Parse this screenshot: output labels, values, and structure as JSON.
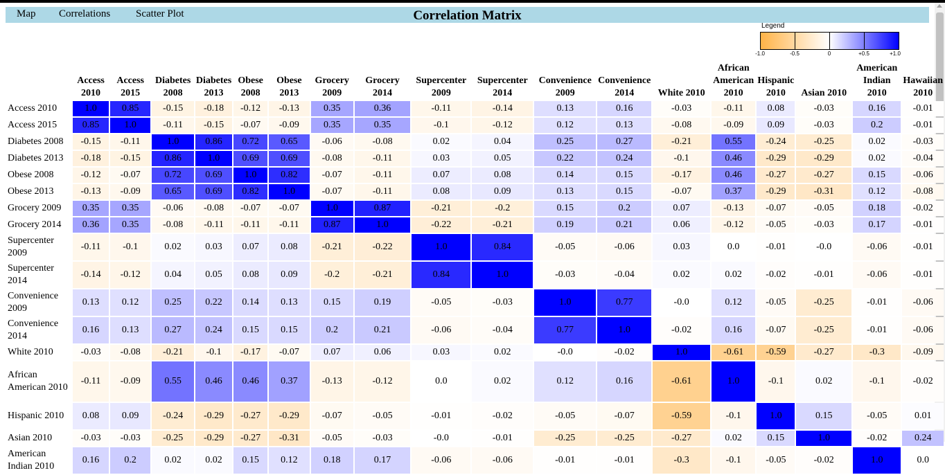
{
  "nav": {
    "items": [
      "Map",
      "Correlations",
      "Scatter Plot"
    ],
    "title": "Correlation Matrix"
  },
  "legend": {
    "title": "Legend",
    "labels": [
      "-1.0",
      "-0.5",
      "0",
      "+0.5",
      "+1.0"
    ],
    "colors": {
      "negative": "#ffb347",
      "zero": "#ffffff",
      "positive": "#0000ff"
    }
  },
  "chart_data": {
    "type": "heatmap",
    "title": "Correlation Matrix",
    "columns": [
      "Access 2010",
      "Access 2015",
      "Diabetes 2008",
      "Diabetes 2013",
      "Obese 2008",
      "Obese 2013",
      "Grocery 2009",
      "Grocery 2014",
      "Supercenter 2009",
      "Supercenter 2014",
      "Convenience 2009",
      "Convenience 2014",
      "White 2010",
      "African American 2010",
      "Hispanic 2010",
      "Asian 2010",
      "American Indian 2010",
      "Hawaiian 2010"
    ],
    "rows": [
      {
        "label": "Access 2010",
        "values": [
          "1.0",
          "0.85",
          "-0.15",
          "-0.18",
          "-0.12",
          "-0.13",
          "0.35",
          "0.36",
          "-0.11",
          "-0.14",
          "0.13",
          "0.16",
          "-0.03",
          "-0.11",
          "0.08",
          "-0.03",
          "0.16",
          "-0.01"
        ]
      },
      {
        "label": "Access 2015",
        "values": [
          "0.85",
          "1.0",
          "-0.11",
          "-0.15",
          "-0.07",
          "-0.09",
          "0.35",
          "0.35",
          "-0.1",
          "-0.12",
          "0.12",
          "0.13",
          "-0.08",
          "-0.09",
          "0.09",
          "-0.03",
          "0.2",
          "-0.01"
        ]
      },
      {
        "label": "Diabetes 2008",
        "values": [
          "-0.15",
          "-0.11",
          "1.0",
          "0.86",
          "0.72",
          "0.65",
          "-0.06",
          "-0.08",
          "0.02",
          "0.04",
          "0.25",
          "0.27",
          "-0.21",
          "0.55",
          "-0.24",
          "-0.25",
          "0.02",
          "-0.03"
        ]
      },
      {
        "label": "Diabetes 2013",
        "values": [
          "-0.18",
          "-0.15",
          "0.86",
          "1.0",
          "0.69",
          "0.69",
          "-0.08",
          "-0.11",
          "0.03",
          "0.05",
          "0.22",
          "0.24",
          "-0.1",
          "0.46",
          "-0.29",
          "-0.29",
          "0.02",
          "-0.04"
        ]
      },
      {
        "label": "Obese 2008",
        "values": [
          "-0.12",
          "-0.07",
          "0.72",
          "0.69",
          "1.0",
          "0.82",
          "-0.07",
          "-0.11",
          "0.07",
          "0.08",
          "0.14",
          "0.15",
          "-0.17",
          "0.46",
          "-0.27",
          "-0.27",
          "0.15",
          "-0.06"
        ]
      },
      {
        "label": "Obese 2013",
        "values": [
          "-0.13",
          "-0.09",
          "0.65",
          "0.69",
          "0.82",
          "1.0",
          "-0.07",
          "-0.11",
          "0.08",
          "0.09",
          "0.13",
          "0.15",
          "-0.07",
          "0.37",
          "-0.29",
          "-0.31",
          "0.12",
          "-0.08"
        ]
      },
      {
        "label": "Grocery 2009",
        "values": [
          "0.35",
          "0.35",
          "-0.06",
          "-0.08",
          "-0.07",
          "-0.07",
          "1.0",
          "0.87",
          "-0.21",
          "-0.2",
          "0.15",
          "0.2",
          "0.07",
          "-0.13",
          "-0.07",
          "-0.05",
          "0.18",
          "-0.02"
        ]
      },
      {
        "label": "Grocery 2014",
        "values": [
          "0.36",
          "0.35",
          "-0.08",
          "-0.11",
          "-0.11",
          "-0.11",
          "0.87",
          "1.0",
          "-0.22",
          "-0.21",
          "0.19",
          "0.21",
          "0.06",
          "-0.12",
          "-0.05",
          "-0.03",
          "0.17",
          "-0.01"
        ]
      },
      {
        "label": "Supercenter 2009",
        "values": [
          "-0.11",
          "-0.1",
          "0.02",
          "0.03",
          "0.07",
          "0.08",
          "-0.21",
          "-0.22",
          "1.0",
          "0.84",
          "-0.05",
          "-0.06",
          "0.03",
          "0.0",
          "-0.01",
          "-0.0",
          "-0.06",
          "-0.01"
        ]
      },
      {
        "label": "Supercenter 2014",
        "values": [
          "-0.14",
          "-0.12",
          "0.04",
          "0.05",
          "0.08",
          "0.09",
          "-0.2",
          "-0.21",
          "0.84",
          "1.0",
          "-0.03",
          "-0.04",
          "0.02",
          "0.02",
          "-0.02",
          "-0.01",
          "-0.06",
          "-0.01"
        ]
      },
      {
        "label": "Convenience 2009",
        "values": [
          "0.13",
          "0.12",
          "0.25",
          "0.22",
          "0.14",
          "0.13",
          "0.15",
          "0.19",
          "-0.05",
          "-0.03",
          "1.0",
          "0.77",
          "-0.0",
          "0.12",
          "-0.05",
          "-0.25",
          "-0.01",
          "-0.06"
        ]
      },
      {
        "label": "Convenience 2014",
        "values": [
          "0.16",
          "0.13",
          "0.27",
          "0.24",
          "0.15",
          "0.15",
          "0.2",
          "0.21",
          "-0.06",
          "-0.04",
          "0.77",
          "1.0",
          "-0.02",
          "0.16",
          "-0.07",
          "-0.25",
          "-0.01",
          "-0.06"
        ]
      },
      {
        "label": "White 2010",
        "values": [
          "-0.03",
          "-0.08",
          "-0.21",
          "-0.1",
          "-0.17",
          "-0.07",
          "0.07",
          "0.06",
          "0.03",
          "0.02",
          "-0.0",
          "-0.02",
          "1.0",
          "-0.61",
          "-0.59",
          "-0.27",
          "-0.3",
          "-0.09"
        ]
      },
      {
        "label": "African American 2010",
        "values": [
          "-0.11",
          "-0.09",
          "0.55",
          "0.46",
          "0.46",
          "0.37",
          "-0.13",
          "-0.12",
          "0.0",
          "0.02",
          "0.12",
          "0.16",
          "-0.61",
          "1.0",
          "-0.1",
          "0.02",
          "-0.1",
          "-0.02"
        ]
      },
      {
        "label": "Hispanic 2010",
        "values": [
          "0.08",
          "0.09",
          "-0.24",
          "-0.29",
          "-0.27",
          "-0.29",
          "-0.07",
          "-0.05",
          "-0.01",
          "-0.02",
          "-0.05",
          "-0.07",
          "-0.59",
          "-0.1",
          "1.0",
          "0.15",
          "-0.05",
          "0.01"
        ]
      },
      {
        "label": "Asian 2010",
        "values": [
          "-0.03",
          "-0.03",
          "-0.25",
          "-0.29",
          "-0.27",
          "-0.31",
          "-0.05",
          "-0.03",
          "-0.0",
          "-0.01",
          "-0.25",
          "-0.25",
          "-0.27",
          "0.02",
          "0.15",
          "1.0",
          "-0.02",
          "0.24"
        ]
      },
      {
        "label": "American Indian 2010",
        "values": [
          "0.16",
          "0.2",
          "0.02",
          "0.02",
          "0.15",
          "0.12",
          "0.18",
          "0.17",
          "-0.06",
          "-0.06",
          "-0.01",
          "-0.01",
          "-0.3",
          "-0.1",
          "-0.05",
          "-0.02",
          "1.0",
          "0.0"
        ]
      }
    ],
    "color_scale": {
      "min": -1.0,
      "max": 1.0,
      "negative": "#ffb347",
      "zero": "#ffffff",
      "positive": "#0000ff"
    }
  }
}
